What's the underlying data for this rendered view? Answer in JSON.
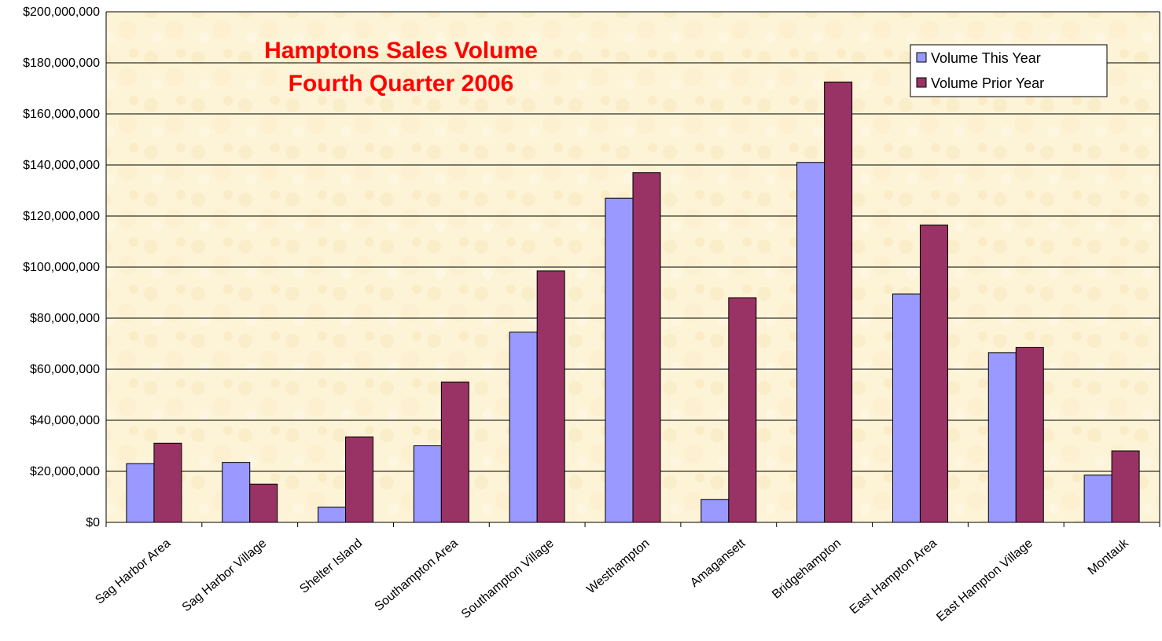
{
  "chart_data": {
    "type": "bar",
    "title": "Hamptons Sales Volume",
    "subtitle": "Fourth Quarter 2006",
    "xlabel": "",
    "ylabel": "",
    "ylim": [
      0,
      200000000
    ],
    "y_ticks": [
      "$0",
      "$20,000,000",
      "$40,000,000",
      "$60,000,000",
      "$80,000,000",
      "$100,000,000",
      "$120,000,000",
      "$140,000,000",
      "$160,000,000",
      "$180,000,000",
      "$200,000,000"
    ],
    "grid": true,
    "legend_position": "top-right",
    "categories": [
      "Sag Harbor Area",
      "Sag Harbor Village",
      "Shelter Island",
      "Southampton Area",
      "Southampton Village",
      "Westhampton",
      "Amagansett",
      "Bridgehampton",
      "East Hampton Area",
      "East Hampton Village",
      "Montauk"
    ],
    "series": [
      {
        "name": "Volume This Year",
        "color": "#9999ff",
        "values": [
          23000000,
          23500000,
          6000000,
          30000000,
          74500000,
          127000000,
          9000000,
          141000000,
          89500000,
          66500000,
          18500000
        ]
      },
      {
        "name": "Volume Prior Year",
        "color": "#993366",
        "values": [
          31000000,
          15000000,
          33500000,
          55000000,
          98500000,
          137000000,
          88000000,
          172500000,
          116500000,
          68500000,
          28000000
        ]
      }
    ],
    "colors": {
      "title": "#ff0000",
      "plot_background": "#fdf3d6",
      "gridline": "#000000"
    }
  }
}
